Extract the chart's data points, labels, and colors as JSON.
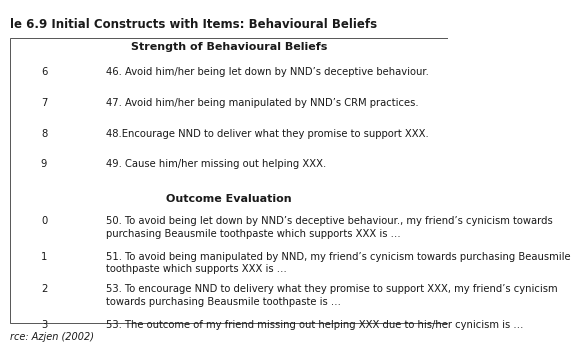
{
  "title": "le 6.9 Initial Constructs with Items: Behavioural Beliefs",
  "section1_header": "Strength of Behavioural Beliefs",
  "section2_header": "Outcome Evaluation",
  "source": "rce: Azjen (2002)",
  "rows_section1": [
    [
      "-6",
      "46. Avoid him/her being let down by NND’s deceptive behaviour."
    ],
    [
      "-7",
      "47. Avoid him/her being manipulated by NND’s CRM practices."
    ],
    [
      "-8",
      "48.Encourage NND to deliver what they promise to support XXX."
    ],
    [
      "-9",
      "49. Cause him/her missing out helping XXX."
    ]
  ],
  "rows_section2": [
    [
      "-0",
      "50. To avoid being let down by NND’s deceptive behaviour., my friend’s cynicism towards\npurchasing Beausmile toothpaste which supports XXX is …"
    ],
    [
      "-1",
      "51. To avoid being manipulated by NND, my friend’s cynicism towards purchasing Beausmile\ntoothpaste which supports XXX is …"
    ],
    [
      "-2",
      "53. To encourage NND to delivery what they promise to support XXX, my friend’s cynicism\ntowards purchasing Beausmile toothpaste is …"
    ],
    [
      "-3",
      "53. The outcome of my friend missing out helping XXX due to his/her cynicism is …"
    ]
  ],
  "background": "#ffffff",
  "text_color": "#1a1a1a",
  "font_size": 7.2,
  "header_font_size": 8.0,
  "title_font_size": 8.5,
  "source_font_size": 7.0
}
